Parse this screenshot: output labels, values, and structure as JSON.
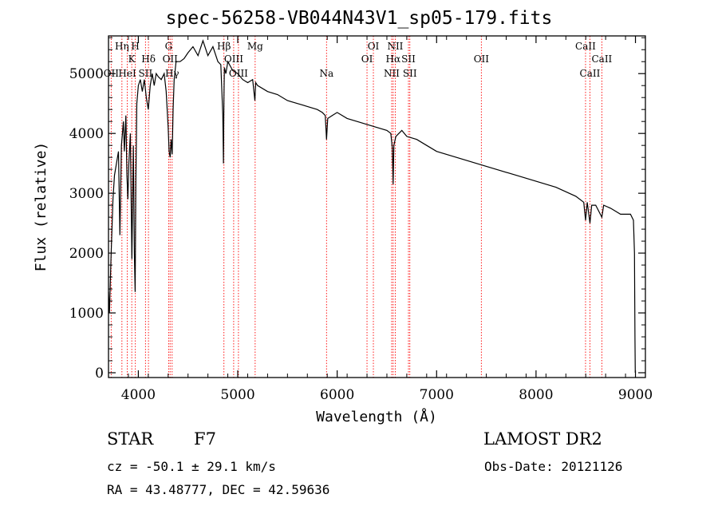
{
  "title": "spec-56258-VB044N43V1_sp05-179.fits",
  "footer": {
    "object_class": "STAR",
    "subclass": "F7",
    "survey": "LAMOST DR2",
    "redshift_text": "cz = -50.1 ± 29.1 km/s",
    "obs_date_text": "Obs-Date: 20121126",
    "radec_text": "RA =  43.48777, DEC =  42.59636"
  },
  "chart_data": {
    "type": "line",
    "title": "spec-56258-VB044N43V1_sp05-179.fits",
    "xlabel": "Wavelength (Å)",
    "ylabel": "Flux (relative)",
    "xlim": [
      3700,
      9100
    ],
    "ylim": [
      -80,
      5630
    ],
    "xticks": [
      4000,
      5000,
      6000,
      7000,
      8000,
      9000
    ],
    "yticks": [
      0,
      1000,
      2000,
      3000,
      4000,
      5000
    ],
    "grid": false,
    "line_color": "#000000",
    "marker_line_color": "#ff0000",
    "series": [
      {
        "x": [
          3700,
          3710,
          3725,
          3745,
          3760,
          3780,
          3800,
          3815,
          3830,
          3850,
          3860,
          3875,
          3885,
          3895,
          3905,
          3920,
          3935,
          3950,
          3960,
          3968,
          3975,
          3985,
          4000,
          4020,
          4040,
          4060,
          4080,
          4100,
          4120,
          4140,
          4160,
          4180,
          4200,
          4230,
          4260,
          4280,
          4300,
          4310,
          4320,
          4330,
          4340,
          4350,
          4360,
          4380,
          4420,
          4460,
          4500,
          4550,
          4600,
          4650,
          4700,
          4750,
          4800,
          4830,
          4850,
          4856,
          4861,
          4866,
          4880,
          4900,
          4950,
          5000,
          5050,
          5100,
          5150,
          5172,
          5180,
          5200,
          5300,
          5400,
          5500,
          5600,
          5700,
          5800,
          5850,
          5880,
          5893,
          5905,
          5950,
          6000,
          6100,
          6200,
          6300,
          6400,
          6500,
          6540,
          6555,
          6563,
          6570,
          6590,
          6650,
          6700,
          6800,
          6900,
          7000,
          7200,
          7400,
          7600,
          7800,
          8000,
          8200,
          8400,
          8480,
          8498,
          8515,
          8542,
          8560,
          8600,
          8662,
          8680,
          8750,
          8850,
          8950,
          8980,
          8990,
          8995,
          8998
        ],
        "y": [
          1350,
          1000,
          1900,
          2900,
          3300,
          3500,
          3700,
          2300,
          3800,
          4200,
          3700,
          4300,
          3300,
          2900,
          3500,
          4000,
          1900,
          3800,
          2000,
          1350,
          3200,
          4500,
          4800,
          4900,
          4700,
          4900,
          4600,
          4400,
          4800,
          5000,
          4800,
          5000,
          4950,
          4900,
          5000,
          4700,
          4100,
          3700,
          3600,
          3900,
          3650,
          4400,
          4900,
          5200,
          5200,
          5250,
          5350,
          5450,
          5300,
          5550,
          5300,
          5450,
          5200,
          5150,
          4300,
          3500,
          4600,
          5100,
          5000,
          5200,
          5050,
          5000,
          4900,
          4850,
          4900,
          4550,
          4850,
          4800,
          4700,
          4650,
          4550,
          4500,
          4450,
          4400,
          4350,
          4300,
          3900,
          4250,
          4300,
          4350,
          4250,
          4200,
          4150,
          4100,
          4050,
          4000,
          3750,
          3150,
          3800,
          3950,
          4050,
          3950,
          3900,
          3800,
          3700,
          3600,
          3500,
          3400,
          3300,
          3200,
          3100,
          2950,
          2850,
          2550,
          2850,
          2500,
          2800,
          2800,
          2600,
          2800,
          2750,
          2650,
          2650,
          2550,
          2000,
          600,
          0
        ]
      }
    ],
    "line_markers": [
      {
        "x": 3727,
        "label": "OII",
        "row": 3
      },
      {
        "x": 3835,
        "label": "Hη",
        "row": 1
      },
      {
        "x": 3889,
        "label": "HeI",
        "row": 3
      },
      {
        "x": 3934,
        "label": "K",
        "row": 2
      },
      {
        "x": 3970,
        "label": "H",
        "row": 1
      },
      {
        "x": 4072,
        "label": "SII",
        "row": 3
      },
      {
        "x": 4102,
        "label": "Hδ",
        "row": 2
      },
      {
        "x": 4305,
        "label": "G",
        "row": 1
      },
      {
        "x": 4320,
        "label": "OII",
        "row": 2
      },
      {
        "x": 4340,
        "label": "Hγ",
        "row": 3
      },
      {
        "x": 4861,
        "label": "Hβ",
        "row": 1
      },
      {
        "x": 4959,
        "label": "OIII",
        "row": 2
      },
      {
        "x": 5007,
        "label": "OIII",
        "row": 3
      },
      {
        "x": 5175,
        "label": "Mg",
        "row": 1
      },
      {
        "x": 5893,
        "label": "Na",
        "row": 3
      },
      {
        "x": 6300,
        "label": "OI",
        "row": 2
      },
      {
        "x": 6364,
        "label": "OI",
        "row": 1
      },
      {
        "x": 6548,
        "label": "NII",
        "row": 3
      },
      {
        "x": 6563,
        "label": "Hα",
        "row": 2
      },
      {
        "x": 6584,
        "label": "NII",
        "row": 1
      },
      {
        "x": 6717,
        "label": "SII",
        "row": 2
      },
      {
        "x": 6731,
        "label": "SII",
        "row": 3
      },
      {
        "x": 7450,
        "label": "OII",
        "row": 2
      },
      {
        "x": 8498,
        "label": "CaII",
        "row": 1
      },
      {
        "x": 8542,
        "label": "CaII",
        "row": 3
      },
      {
        "x": 8662,
        "label": "CaII",
        "row": 2
      }
    ]
  }
}
